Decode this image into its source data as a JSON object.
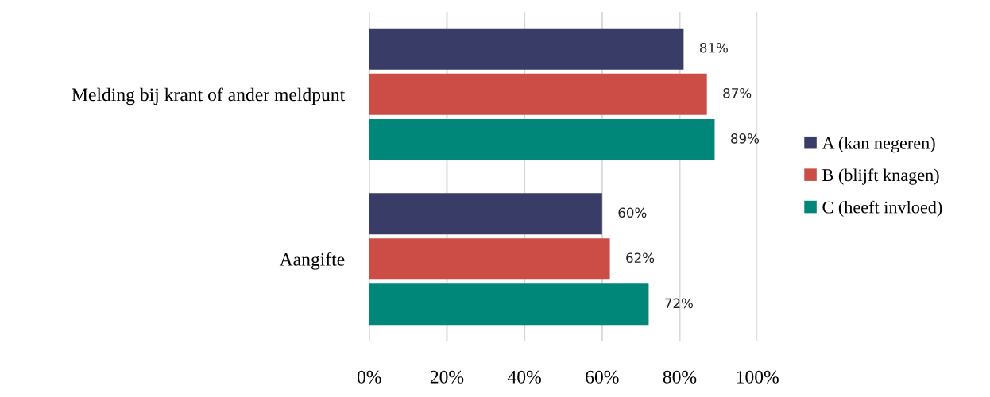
{
  "chart_data": {
    "type": "bar",
    "orientation": "horizontal",
    "categories": [
      "Melding bij krant of ander meldpunt",
      "Aangifte"
    ],
    "series": [
      {
        "name": "A (kan negeren)",
        "color": "#3a3c68",
        "values": [
          81,
          60
        ],
        "value_labels": [
          "81%",
          "60%"
        ]
      },
      {
        "name": "B (blijft knagen)",
        "color": "#cb4d45",
        "values": [
          87,
          62
        ],
        "value_labels": [
          "87%",
          "62%"
        ]
      },
      {
        "name": "C (heeft invloed)",
        "color": "#00877a",
        "values": [
          89,
          72
        ],
        "value_labels": [
          "89%",
          "72%"
        ]
      }
    ],
    "xlim": [
      0,
      100
    ],
    "xticks": [
      {
        "value": 0,
        "label": "0%"
      },
      {
        "value": 20,
        "label": "20%"
      },
      {
        "value": 40,
        "label": "40%"
      },
      {
        "value": 60,
        "label": "60%"
      },
      {
        "value": 80,
        "label": "80%"
      },
      {
        "value": 100,
        "label": "100%"
      }
    ],
    "grid": "x",
    "legend": "right"
  }
}
